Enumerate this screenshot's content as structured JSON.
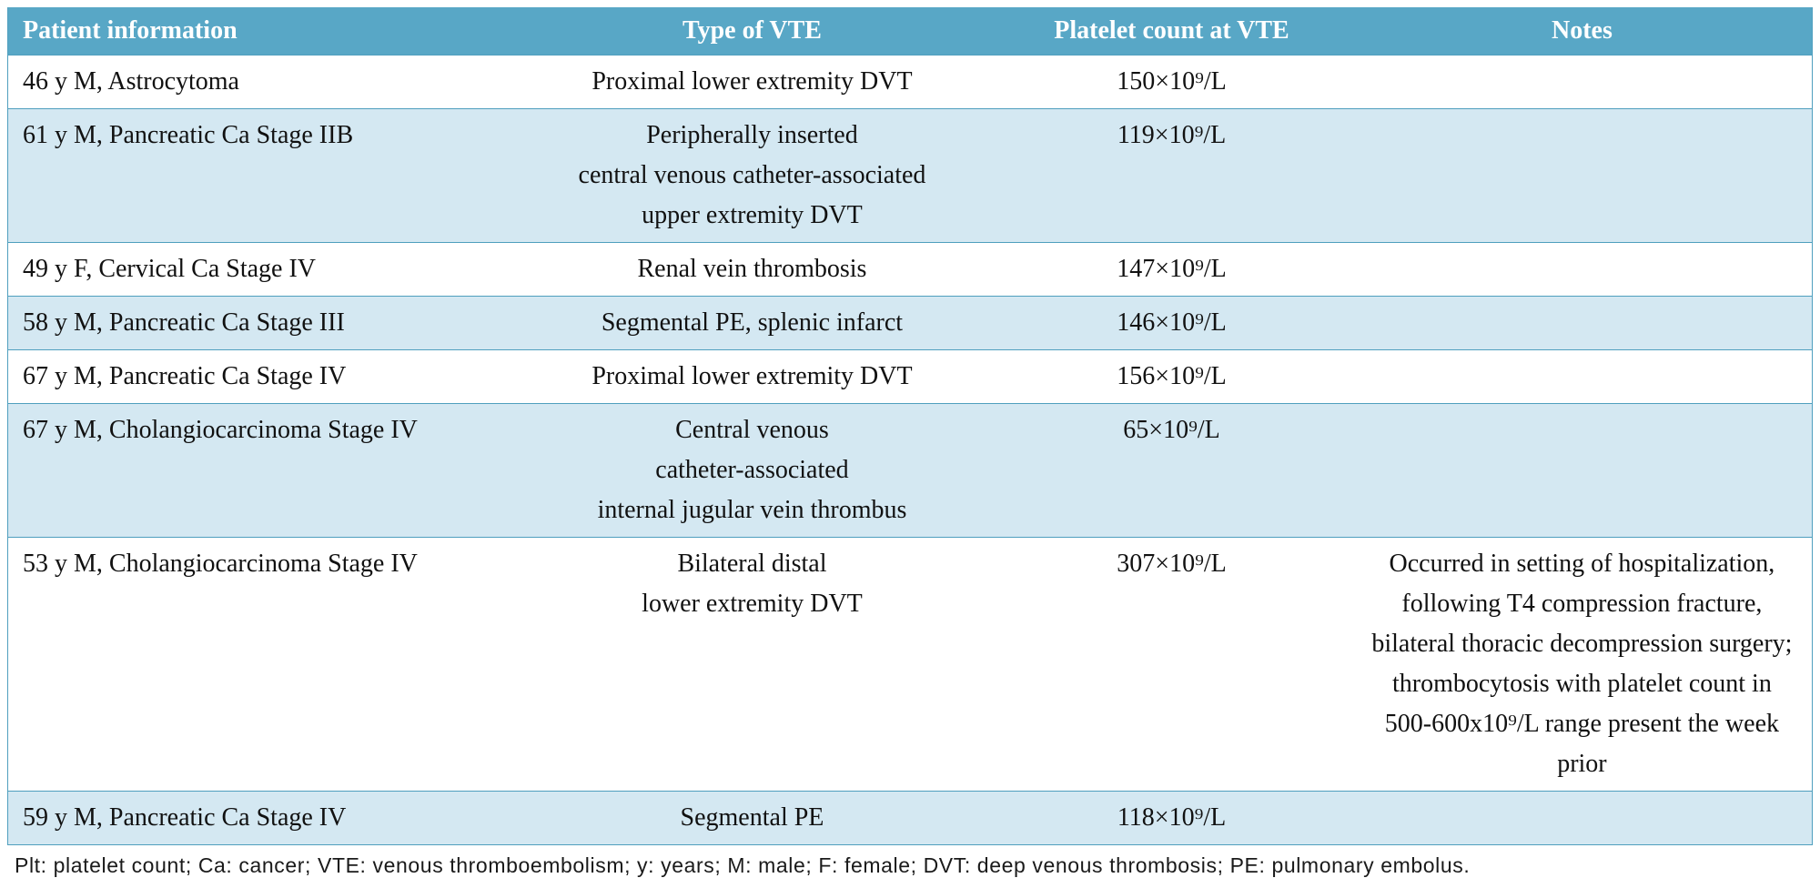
{
  "table": {
    "columns": [
      "Patient information",
      "Type of VTE",
      "Platelet count at VTE",
      "Notes"
    ],
    "rows": [
      {
        "patient": "46 y M, Astrocytoma",
        "type": "Proximal lower extremity DVT",
        "platelet": "150×10⁹/L",
        "notes": ""
      },
      {
        "patient": "61 y M, Pancreatic Ca Stage IIB",
        "type": "Peripherally inserted\ncentral venous catheter-associated\nupper extremity DVT",
        "platelet": "119×10⁹/L",
        "notes": ""
      },
      {
        "patient": "49 y F, Cervical Ca Stage IV",
        "type": "Renal vein thrombosis",
        "platelet": "147×10⁹/L",
        "notes": ""
      },
      {
        "patient": "58 y M, Pancreatic Ca Stage III",
        "type": "Segmental PE, splenic infarct",
        "platelet": "146×10⁹/L",
        "notes": ""
      },
      {
        "patient": "67 y M, Pancreatic Ca Stage IV",
        "type": "Proximal lower extremity DVT",
        "platelet": "156×10⁹/L",
        "notes": ""
      },
      {
        "patient": "67 y M, Cholangiocarcinoma Stage IV",
        "type": "Central venous\ncatheter-associated\ninternal jugular vein thrombus",
        "platelet": "65×10⁹/L",
        "notes": ""
      },
      {
        "patient": "53 y M, Cholangiocarcinoma Stage IV",
        "type": "Bilateral distal\nlower extremity DVT",
        "platelet": "307×10⁹/L",
        "notes": "Occurred in setting of hospitalization,\nfollowing T4 compression fracture,\nbilateral thoracic decompression surgery;\nthrombocytosis with platelet count in\n500-600x10⁹/L range present the week prior"
      },
      {
        "patient": "59 y M, Pancreatic Ca Stage IV",
        "type": "Segmental PE",
        "platelet": "118×10⁹/L",
        "notes": ""
      }
    ],
    "footnote": "Plt: platelet count; Ca: cancer; VTE: venous thromboembolism; y: years; M: male; F: female; DVT: deep venous thrombosis; PE: pulmonary embolus.",
    "colors": {
      "header_bg": "#58a7c6",
      "row_alt_bg": "#d4e8f2",
      "border": "#4f9fbe",
      "header_text": "#ffffff"
    }
  }
}
